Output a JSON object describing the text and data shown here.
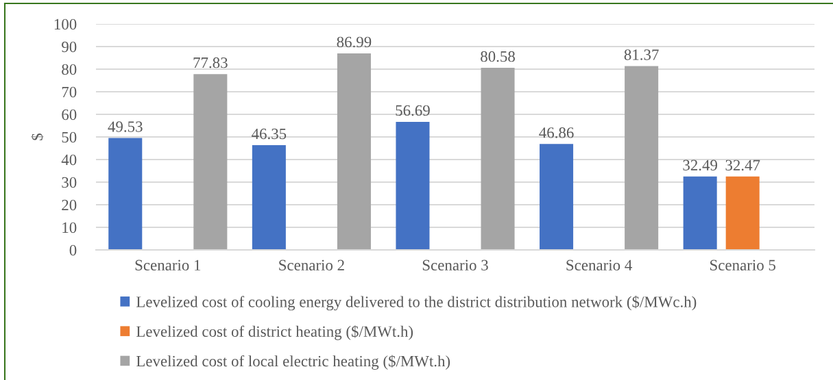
{
  "chart_data": {
    "type": "bar",
    "ylabel": "$",
    "categories": [
      "Scenario 1",
      "Scenario 2",
      "Scenario 3",
      "Scenario 4",
      "Scenario 5"
    ],
    "series": [
      {
        "name": "Levelized cost of cooling energy delivered to the district distribution network ($/MWc.h)",
        "color": "#4472c4",
        "values": [
          49.53,
          46.35,
          56.69,
          46.86,
          32.49
        ]
      },
      {
        "name": "Levelized cost of district heating ($/MWt.h)",
        "color": "#ed7d31",
        "values": [
          null,
          null,
          null,
          null,
          32.47
        ]
      },
      {
        "name": "Levelized cost of local electric heating ($/MWt.h)",
        "color": "#a5a5a5",
        "values": [
          77.83,
          86.99,
          80.58,
          81.37,
          null
        ]
      }
    ],
    "ylim": [
      0,
      100
    ],
    "yticks": [
      0,
      10,
      20,
      30,
      40,
      50,
      60,
      70,
      80,
      90,
      100
    ],
    "grid": "y",
    "legend": "bottom",
    "data_labels": true
  }
}
